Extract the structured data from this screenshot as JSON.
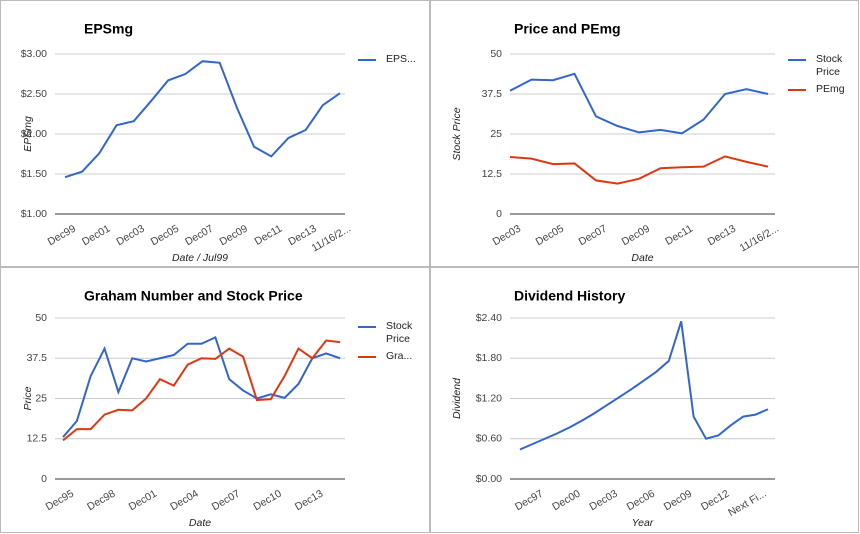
{
  "chart_data": [
    {
      "type": "line",
      "title": "EPSmg",
      "xlabel": "Date / Jul99",
      "ylabel": "EPSmg",
      "categories": [
        "Dec99",
        null,
        "Dec01",
        null,
        "Dec03",
        null,
        "Dec05",
        null,
        "Dec07",
        null,
        "Dec09",
        null,
        "Dec11",
        null,
        "Dec13",
        null,
        "11/16/2..."
      ],
      "series": [
        {
          "name": "EPS...",
          "color": "#3366cc",
          "values": [
            1.46,
            1.53,
            1.76,
            2.11,
            2.16,
            2.41,
            2.67,
            2.75,
            2.91,
            2.89,
            2.33,
            1.84,
            1.72,
            1.95,
            2.05,
            2.36,
            2.51
          ]
        }
      ],
      "ylim": [
        1,
        3
      ],
      "yticks": [
        {
          "value": 1,
          "label": "$1.00"
        },
        {
          "value": 1.5,
          "label": "$1.50"
        },
        {
          "value": 2,
          "label": "$2.00"
        },
        {
          "value": 2.5,
          "label": "$2.50"
        },
        {
          "value": 3,
          "label": "$3.00"
        }
      ],
      "grid": true,
      "legend": "right"
    },
    {
      "type": "line",
      "title": "Price and PEmg",
      "xlabel": "Date",
      "ylabel": "Stock Price",
      "categories": [
        "Dec03",
        null,
        "Dec05",
        null,
        "Dec07",
        null,
        "Dec09",
        null,
        "Dec11",
        null,
        "Dec13",
        null,
        "11/16/2..."
      ],
      "series": [
        {
          "name": "Stock Price",
          "color": "#3366cc",
          "values": [
            38.5,
            42,
            41.8,
            43.8,
            30.5,
            27.5,
            25.5,
            26.3,
            25.2,
            29.5,
            37.5,
            39,
            37.5
          ]
        },
        {
          "name": "PEmg",
          "color": "#dc3912",
          "values": [
            17.8,
            17.3,
            15.6,
            15.8,
            10.5,
            9.5,
            11,
            14.3,
            14.6,
            14.8,
            18,
            16.3,
            14.8
          ]
        }
      ],
      "ylim": [
        0,
        50
      ],
      "yticks": [
        0,
        12.5,
        25,
        37.5,
        50
      ],
      "grid": true,
      "legend": "right"
    },
    {
      "type": "line",
      "title": "Graham Number and Stock Price",
      "xlabel": "Date",
      "ylabel": "Price",
      "categories": [
        "Dec95",
        null,
        null,
        "Dec98",
        null,
        null,
        "Dec01",
        null,
        null,
        "Dec04",
        null,
        null,
        "Dec07",
        null,
        null,
        "Dec10",
        null,
        null,
        "Dec13",
        null,
        null
      ],
      "series": [
        {
          "name": "Stock Price",
          "color": "#3366cc",
          "values": [
            13,
            18,
            32,
            40.5,
            27,
            37.5,
            36.5,
            37.5,
            38.5,
            42,
            42,
            44,
            31,
            27.5,
            25,
            26.3,
            25.2,
            29.5,
            37.5,
            39,
            37.5
          ]
        },
        {
          "name": "Gra...",
          "color": "#dc3912",
          "values": [
            12,
            15.5,
            15.5,
            20,
            21.5,
            21.3,
            25,
            31,
            29,
            35.5,
            37.5,
            37.3,
            40.5,
            38,
            24.5,
            24.8,
            32,
            40.5,
            37.5,
            43,
            42.5
          ]
        }
      ],
      "ylim": [
        0,
        50
      ],
      "yticks": [
        0,
        12.5,
        25,
        37.5,
        50
      ],
      "grid": true,
      "legend": "right"
    },
    {
      "type": "line",
      "title": "Dividend History",
      "xlabel": "Year",
      "ylabel": "Dividend",
      "categories": [
        null,
        "Dec97",
        null,
        null,
        "Dec00",
        null,
        null,
        "Dec03",
        null,
        null,
        "Dec06",
        null,
        null,
        "Dec09",
        null,
        null,
        "Dec12",
        null,
        null,
        "Next Fi...",
        null
      ],
      "series": [
        {
          "color": "#3366cc",
          "values": [
            0.44,
            0.52,
            0.6,
            0.68,
            0.77,
            0.87,
            0.98,
            1.1,
            1.22,
            1.34,
            1.47,
            1.6,
            1.76,
            2.35,
            0.93,
            0.6,
            0.65,
            0.8,
            0.93,
            0.96,
            1.04
          ]
        }
      ],
      "ylim": [
        0,
        2.4
      ],
      "yticks": [
        {
          "value": 0,
          "label": "$0.00"
        },
        {
          "value": 0.6,
          "label": "$0.60"
        },
        {
          "value": 1.2,
          "label": "$1.20"
        },
        {
          "value": 1.8,
          "label": "$1.80"
        },
        {
          "value": 2.4,
          "label": "$2.40"
        }
      ],
      "grid": true
    }
  ]
}
